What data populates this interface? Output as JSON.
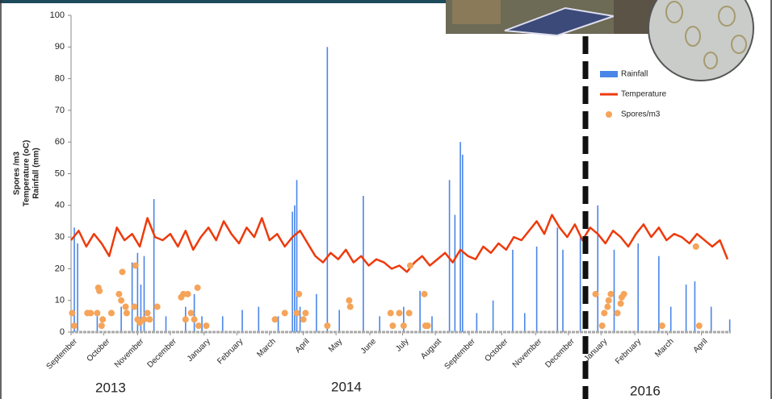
{
  "chart_data": {
    "type": "combo",
    "y_label": [
      "Spores /m3",
      "Temperature (oC)",
      "Rainfall (mm)"
    ],
    "ylim": [
      0,
      100
    ],
    "yticks": [
      0,
      10,
      20,
      30,
      40,
      50,
      60,
      70,
      80,
      90,
      100
    ],
    "xlim": [
      0,
      605
    ],
    "xticks": [
      {
        "value": 0,
        "label": "September"
      },
      {
        "value": 30,
        "label": "October"
      },
      {
        "value": 61,
        "label": "November"
      },
      {
        "value": 91,
        "label": "December"
      },
      {
        "value": 122,
        "label": "January"
      },
      {
        "value": 152,
        "label": "February"
      },
      {
        "value": 182,
        "label": "March"
      },
      {
        "value": 213,
        "label": "April"
      },
      {
        "value": 243,
        "label": "May"
      },
      {
        "value": 274,
        "label": "June"
      },
      {
        "value": 304,
        "label": "July"
      },
      {
        "value": 334,
        "label": "August"
      },
      {
        "value": 365,
        "label": "September"
      },
      {
        "value": 395,
        "label": "October"
      },
      {
        "value": 426,
        "label": "November"
      },
      {
        "value": 456,
        "label": "December"
      },
      {
        "value": 486,
        "label": "January"
      },
      {
        "value": 517,
        "label": "February"
      },
      {
        "value": 547,
        "label": "March"
      },
      {
        "value": 578,
        "label": "April"
      }
    ],
    "years": [
      "2013",
      "2014",
      "2016"
    ],
    "legend_position": "upper right",
    "series": [
      {
        "name": "Rainfall",
        "type": "bar",
        "color": "#4a86e8",
        "x": [
          3,
          6,
          24,
          46,
          56,
          61,
          64,
          67,
          76,
          87,
          105,
          113,
          120,
          139,
          157,
          172,
          190,
          203,
          205,
          207,
          210,
          225,
          235,
          246,
          268,
          283,
          305,
          320,
          331,
          347,
          352,
          357,
          359,
          372,
          387,
          405,
          416,
          427,
          446,
          451,
          467,
          483,
          498,
          520,
          539,
          550,
          564,
          572,
          587,
          604
        ],
        "values": [
          33,
          28,
          5,
          8,
          22,
          25,
          15,
          24,
          42,
          5,
          8,
          12,
          5,
          5,
          7,
          8,
          5,
          38,
          40,
          48,
          8,
          12,
          90,
          7,
          43,
          5,
          8,
          13,
          5,
          48,
          37,
          60,
          56,
          6,
          10,
          26,
          6,
          27,
          33,
          26,
          30,
          40,
          26,
          28,
          24,
          8,
          15,
          16,
          8,
          4
        ]
      },
      {
        "name": "Temperature",
        "type": "line",
        "color": "#ee3a0c",
        "x": [
          0,
          7,
          14,
          21,
          28,
          35,
          42,
          49,
          56,
          63,
          70,
          77,
          84,
          91,
          98,
          105,
          112,
          119,
          126,
          133,
          140,
          147,
          154,
          161,
          168,
          175,
          182,
          189,
          196,
          203,
          210,
          217,
          224,
          231,
          238,
          245,
          252,
          259,
          266,
          273,
          280,
          287,
          294,
          301,
          308,
          315,
          322,
          329,
          336,
          343,
          350,
          357,
          364,
          371,
          378,
          385,
          392,
          399,
          406,
          413,
          420,
          427,
          434,
          441,
          448,
          455,
          462,
          469,
          476,
          483,
          490,
          497,
          504,
          511,
          518,
          525,
          532,
          539,
          546,
          553,
          560,
          567,
          574,
          581,
          588,
          595,
          602
        ],
        "values": [
          29,
          32,
          27,
          31,
          28,
          24,
          33,
          29,
          31,
          27,
          36,
          30,
          29,
          31,
          27,
          32,
          26,
          30,
          33,
          29,
          35,
          31,
          28,
          33,
          30,
          36,
          29,
          31,
          27,
          30,
          32,
          28,
          24,
          22,
          25,
          23,
          26,
          22,
          24,
          21,
          23,
          22,
          20,
          21,
          19,
          22,
          24,
          21,
          23,
          25,
          22,
          26,
          24,
          23,
          27,
          25,
          28,
          26,
          30,
          29,
          32,
          35,
          31,
          37,
          33,
          30,
          34,
          29,
          33,
          31,
          28,
          32,
          30,
          27,
          31,
          34,
          30,
          33,
          29,
          31,
          30,
          28,
          31,
          29,
          27,
          29,
          23
        ]
      },
      {
        "name": "Spores/m3",
        "type": "scatter",
        "color": "#f5a45a",
        "x": [
          1,
          3,
          15,
          18,
          24,
          25,
          26,
          28,
          29,
          37,
          44,
          46,
          47,
          50,
          51,
          58,
          59,
          61,
          63,
          67,
          70,
          72,
          79,
          101,
          103,
          105,
          107,
          110,
          113,
          116,
          117,
          124,
          187,
          196,
          207,
          209,
          213,
          215,
          235,
          255,
          256,
          293,
          295,
          301,
          305,
          310,
          311,
          324,
          325,
          327,
          481,
          487,
          489,
          492,
          493,
          495,
          501,
          504,
          505,
          507,
          542,
          576,
          573
        ],
        "values": [
          6,
          2,
          6,
          6,
          6,
          14,
          13,
          2,
          4,
          6,
          12,
          10,
          19,
          8,
          6,
          8,
          21,
          4,
          3,
          4,
          6,
          4,
          8,
          11,
          12,
          4,
          12,
          6,
          4,
          14,
          2,
          2,
          4,
          6,
          6,
          12,
          4,
          6,
          2,
          10,
          8,
          6,
          2,
          6,
          2,
          6,
          21,
          12,
          2,
          2,
          12,
          2,
          6,
          8,
          10,
          12,
          6,
          9,
          11,
          12,
          2,
          2,
          27
        ]
      }
    ]
  }
}
